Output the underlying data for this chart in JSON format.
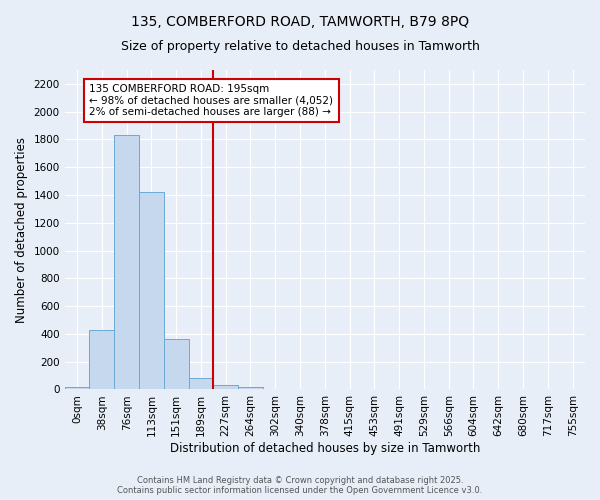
{
  "title_line1": "135, COMBERFORD ROAD, TAMWORTH, B79 8PQ",
  "title_line2": "Size of property relative to detached houses in Tamworth",
  "xlabel": "Distribution of detached houses by size in Tamworth",
  "ylabel": "Number of detached properties",
  "categories": [
    "0sqm",
    "38sqm",
    "76sqm",
    "113sqm",
    "151sqm",
    "189sqm",
    "227sqm",
    "264sqm",
    "302sqm",
    "340sqm",
    "378sqm",
    "415sqm",
    "453sqm",
    "491sqm",
    "529sqm",
    "566sqm",
    "604sqm",
    "642sqm",
    "680sqm",
    "717sqm",
    "755sqm"
  ],
  "values": [
    15,
    430,
    1830,
    1420,
    360,
    80,
    30,
    20,
    0,
    0,
    0,
    0,
    0,
    0,
    0,
    0,
    0,
    0,
    0,
    0,
    0
  ],
  "bar_color": "#c5d8ee",
  "bar_edgecolor": "#6aaad4",
  "ylim": [
    0,
    2300
  ],
  "yticks": [
    0,
    200,
    400,
    600,
    800,
    1000,
    1200,
    1400,
    1600,
    1800,
    2000,
    2200
  ],
  "red_line_x": 5.5,
  "annotation_text": "135 COMBERFORD ROAD: 195sqm\n← 98% of detached houses are smaller (4,052)\n2% of semi-detached houses are larger (88) →",
  "annotation_box_color": "#ffffff",
  "annotation_box_edgecolor": "#cc0000",
  "red_line_color": "#cc0000",
  "footer_line1": "Contains HM Land Registry data © Crown copyright and database right 2025.",
  "footer_line2": "Contains public sector information licensed under the Open Government Licence v3.0.",
  "background_color": "#e8eef8",
  "grid_color": "#ffffff",
  "title_fontsize": 10,
  "subtitle_fontsize": 9,
  "axis_label_fontsize": 8.5,
  "tick_fontsize": 7.5,
  "annot_fontsize": 7.5,
  "footer_fontsize": 6
}
